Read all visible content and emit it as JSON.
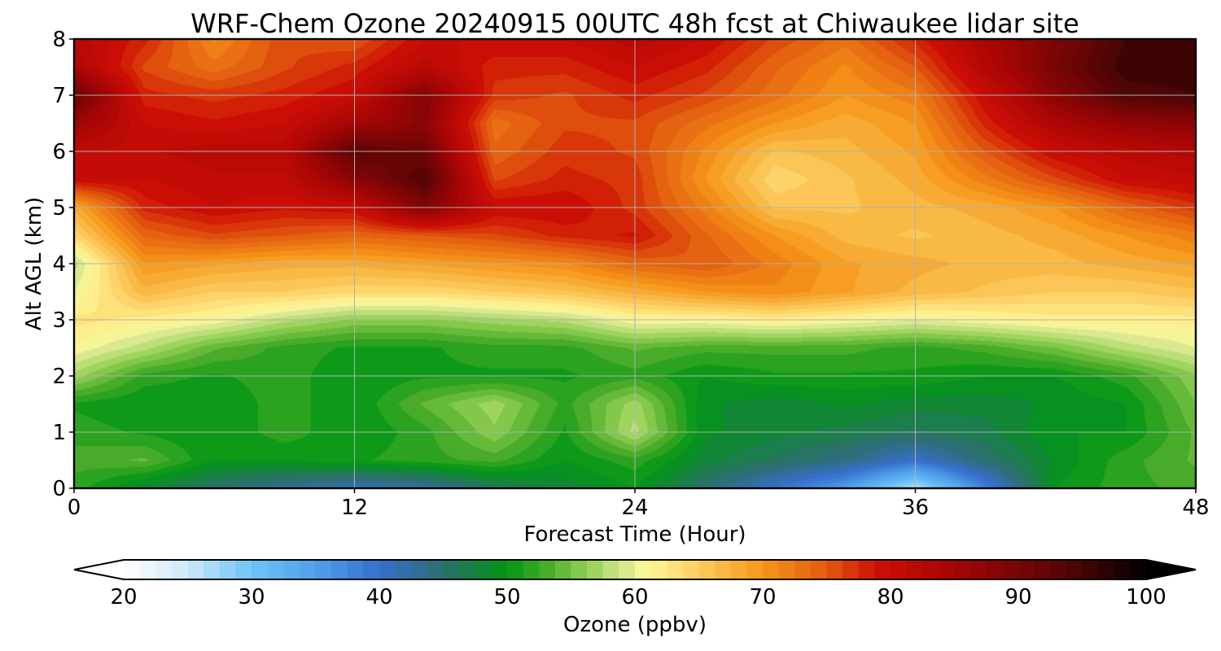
{
  "chart_data": {
    "type": "heatmap",
    "title": "WRF-Chem Ozone  20240915 00UTC 48h fcst at Chiwaukee lidar site",
    "xlabel": "Forecast Time (Hour)",
    "ylabel": "Alt AGL (km)",
    "xlim": [
      0,
      48
    ],
    "ylim": [
      0,
      8
    ],
    "x_ticks": [
      0,
      12,
      24,
      36,
      48
    ],
    "y_ticks": [
      0,
      1,
      2,
      3,
      4,
      5,
      6,
      7,
      8
    ],
    "grid": true,
    "colorbar": {
      "label": "Ozone  (ppbv)",
      "min": 20,
      "max": 100,
      "ticks": [
        20,
        30,
        40,
        50,
        60,
        70,
        80,
        90,
        100
      ],
      "extend": "both",
      "orientation": "horizontal",
      "placement": "bottom"
    },
    "x": [
      0,
      3,
      6,
      9,
      12,
      15,
      18,
      21,
      24,
      27,
      30,
      33,
      36,
      39,
      42,
      45,
      48
    ],
    "y": [
      0,
      0.5,
      1,
      1.5,
      2,
      2.5,
      3,
      3.5,
      4,
      4.5,
      5,
      5.5,
      6,
      6.5,
      7,
      7.5,
      8
    ],
    "z": [
      [
        52,
        48,
        45,
        43,
        41,
        42,
        46,
        48,
        50,
        45,
        40,
        35,
        26,
        38,
        50,
        52,
        53
      ],
      [
        53,
        54,
        50,
        50,
        51,
        52,
        53,
        50,
        52,
        48,
        46,
        44,
        40,
        45,
        49,
        52,
        54
      ],
      [
        52,
        51,
        50,
        52,
        50,
        52,
        56,
        51,
        58,
        49,
        48,
        47,
        46,
        47,
        50,
        50,
        54
      ],
      [
        51,
        50,
        50,
        52,
        50,
        54,
        57,
        52,
        57,
        49,
        48,
        49,
        48,
        48,
        49,
        50,
        55
      ],
      [
        57,
        52,
        51,
        52,
        50,
        51,
        51,
        51,
        52,
        50,
        51,
        51,
        51,
        50,
        50,
        52,
        56
      ],
      [
        61,
        58,
        54,
        52,
        51,
        51,
        52,
        52,
        54,
        53,
        53,
        53,
        52,
        53,
        55,
        58,
        60
      ],
      [
        63,
        62,
        61,
        58,
        56,
        56,
        57,
        58,
        61,
        61,
        62,
        61,
        60,
        61,
        62,
        62,
        62
      ],
      [
        60,
        67,
        65,
        65,
        64,
        64,
        65,
        66,
        68,
        70,
        71,
        69,
        67,
        66,
        65,
        65,
        66
      ],
      [
        58,
        70,
        69,
        68,
        68,
        69,
        70,
        71,
        74,
        75,
        72,
        69,
        68,
        67,
        67,
        68,
        69
      ],
      [
        64,
        74,
        76,
        75,
        74,
        75,
        76,
        78,
        79,
        74,
        70,
        67,
        66,
        67,
        68,
        70,
        72
      ],
      [
        68,
        78,
        80,
        79,
        80,
        89,
        80,
        80,
        77,
        72,
        66,
        66,
        67,
        68,
        70,
        74,
        77
      ],
      [
        80,
        80,
        81,
        81,
        88,
        94,
        76,
        78,
        77,
        70,
        64,
        66,
        68,
        72,
        76,
        80,
        81
      ],
      [
        81,
        81,
        82,
        82,
        93,
        91,
        74,
        77,
        76,
        71,
        66,
        67,
        69,
        75,
        80,
        82,
        83
      ],
      [
        86,
        80,
        79,
        80,
        85,
        88,
        73,
        76,
        76,
        73,
        70,
        68,
        70,
        78,
        84,
        87,
        88
      ],
      [
        92,
        78,
        77,
        78,
        80,
        89,
        77,
        76,
        78,
        76,
        73,
        70,
        72,
        80,
        88,
        94,
        95
      ],
      [
        84,
        76,
        73,
        76,
        78,
        82,
        78,
        78,
        80,
        78,
        74,
        71,
        75,
        83,
        90,
        96,
        96
      ],
      [
        82,
        78,
        71,
        76,
        75,
        80,
        80,
        80,
        82,
        80,
        76,
        73,
        78,
        84,
        89,
        95,
        95
      ]
    ]
  }
}
